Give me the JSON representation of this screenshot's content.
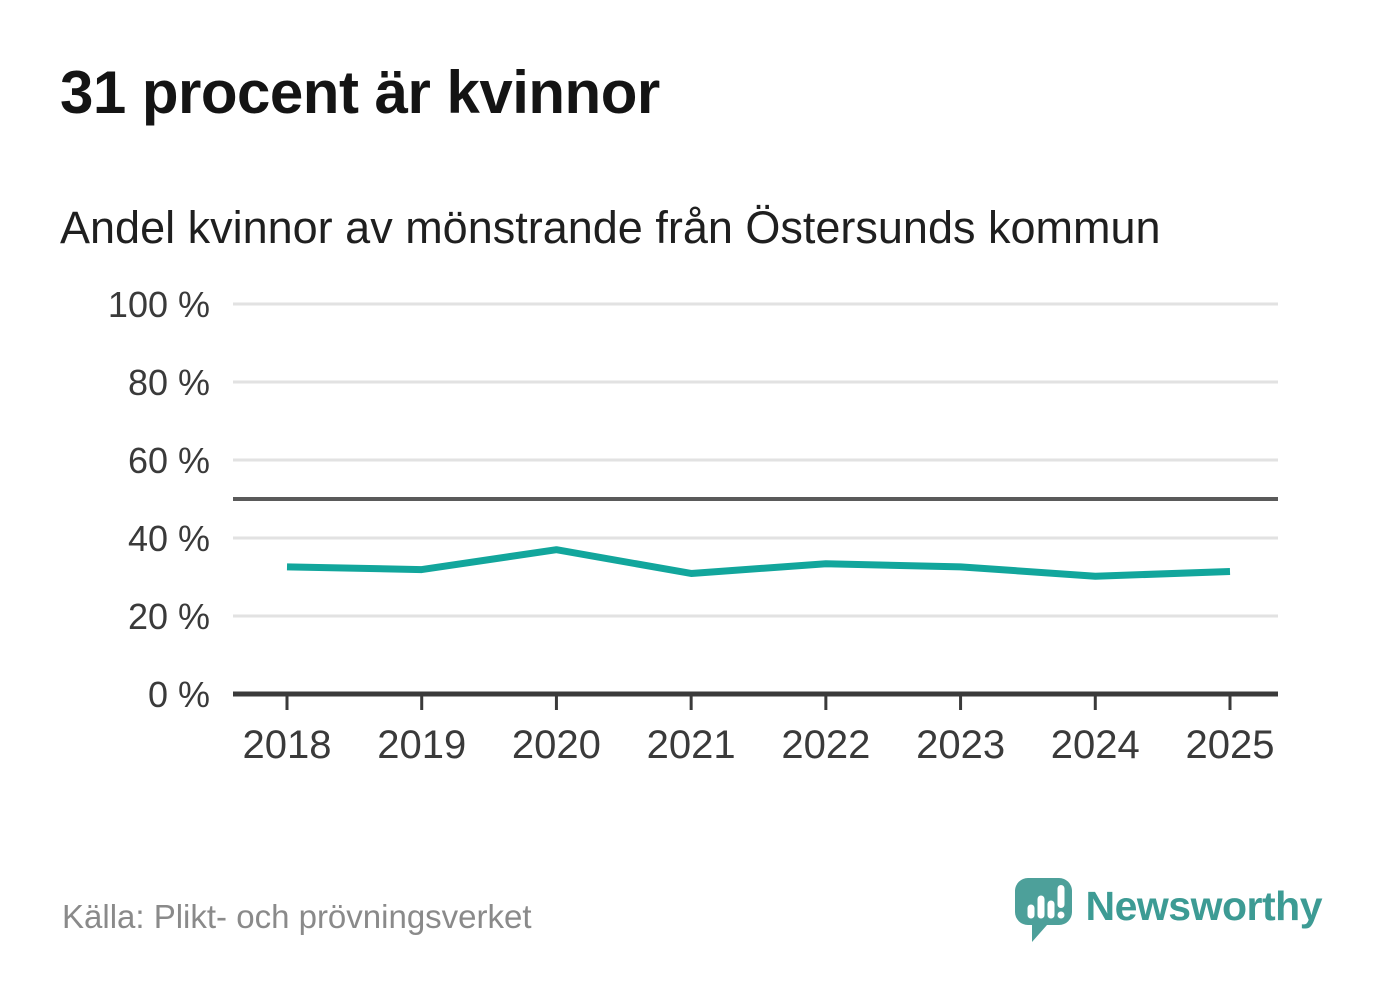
{
  "header": {
    "title": "31 procent är kvinnor",
    "subtitle": "Andel kvinnor av mönstrande från Östersunds kommun"
  },
  "footer": {
    "source": "Källa: Plikt- och prövningsverket",
    "brand": "Newsworthy",
    "logo_icon": "speech-bubble-with-bar-chart-and-exclamation"
  },
  "colors": {
    "line": "#12a69c",
    "grid": "#e2e2e2",
    "axis": "#3a3a3a",
    "reference_line": "#5a5a5a",
    "tick_label": "#3a3a3a",
    "title_text": "#141414",
    "source_text": "#8a8a8a",
    "brand_teal": "#3d9b94",
    "logo_teal": "#4da09a",
    "logo_glyph": "#ffffff",
    "background": "#ffffff"
  },
  "chart_data": {
    "type": "line",
    "title": "31 procent är kvinnor",
    "subtitle": "Andel kvinnor av mönstrande från Östersunds kommun",
    "categories": [
      "2018",
      "2019",
      "2020",
      "2021",
      "2022",
      "2023",
      "2024",
      "2025"
    ],
    "series": [
      {
        "name": "Andel kvinnor av mönstrande",
        "values": [
          32.6,
          31.9,
          37.0,
          30.9,
          33.4,
          32.6,
          30.2,
          31.4
        ]
      }
    ],
    "unit": "%",
    "ylim": [
      0,
      100
    ],
    "yticks": [
      0,
      20,
      40,
      60,
      80,
      100
    ],
    "ytick_labels": [
      "0 %",
      "20 %",
      "40 %",
      "60 %",
      "80 %",
      "100 %"
    ],
    "reference_line_y": 50,
    "grid": true,
    "legend": "none",
    "source": "Källa: Plikt- och prövningsverket"
  }
}
